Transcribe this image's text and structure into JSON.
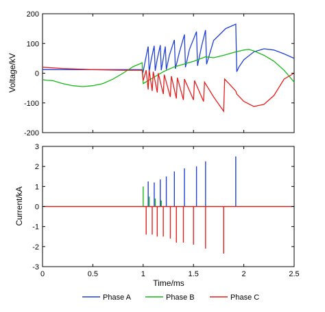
{
  "chart_data": [
    {
      "type": "line",
      "ylabel": "Voltage/kV",
      "xlim": [
        0,
        2.5
      ],
      "ylim": [
        -200,
        200
      ],
      "xticks": [
        "0",
        "0.5",
        "1",
        "1.5",
        "2",
        "2.5"
      ],
      "yticks": [
        "-200",
        "-100",
        "0",
        "100",
        "200"
      ],
      "grid": false,
      "series": [
        {
          "name": "Phase A",
          "color": "#1f3fd6",
          "points": [
            [
              0,
              12
            ],
            [
              0.5,
              12
            ],
            [
              0.9,
              12
            ],
            [
              0.99,
              12
            ],
            [
              1.0,
              5
            ],
            [
              1.02,
              40
            ],
            [
              1.05,
              90
            ],
            [
              1.06,
              5
            ],
            [
              1.08,
              45
            ],
            [
              1.11,
              92
            ],
            [
              1.12,
              8
            ],
            [
              1.14,
              48
            ],
            [
              1.17,
              94
            ],
            [
              1.18,
              10
            ],
            [
              1.2,
              50
            ],
            [
              1.22,
              90
            ],
            [
              1.23,
              12
            ],
            [
              1.26,
              60
            ],
            [
              1.31,
              112
            ],
            [
              1.32,
              15
            ],
            [
              1.36,
              70
            ],
            [
              1.41,
              130
            ],
            [
              1.42,
              20
            ],
            [
              1.46,
              80
            ],
            [
              1.53,
              140
            ],
            [
              1.54,
              25
            ],
            [
              1.58,
              90
            ],
            [
              1.62,
              145
            ],
            [
              1.63,
              30
            ],
            [
              1.7,
              110
            ],
            [
              1.82,
              150
            ],
            [
              1.92,
              165
            ],
            [
              1.93,
              5
            ],
            [
              1.95,
              20
            ],
            [
              2.0,
              45
            ],
            [
              2.1,
              72
            ],
            [
              2.2,
              82
            ],
            [
              2.3,
              78
            ],
            [
              2.4,
              65
            ],
            [
              2.5,
              50
            ]
          ]
        },
        {
          "name": "Phase B",
          "color": "#14b814",
          "points": [
            [
              0,
              -22
            ],
            [
              0.05,
              -24
            ],
            [
              0.1,
              -25
            ],
            [
              0.2,
              -35
            ],
            [
              0.3,
              -42
            ],
            [
              0.4,
              -45
            ],
            [
              0.5,
              -42
            ],
            [
              0.6,
              -35
            ],
            [
              0.7,
              -20
            ],
            [
              0.8,
              0
            ],
            [
              0.9,
              22
            ],
            [
              0.99,
              35
            ],
            [
              1.0,
              -35
            ],
            [
              1.05,
              -25
            ],
            [
              1.1,
              -15
            ],
            [
              1.2,
              5
            ],
            [
              1.3,
              20
            ],
            [
              1.4,
              30
            ],
            [
              1.5,
              40
            ],
            [
              1.62,
              55
            ],
            [
              1.7,
              52
            ],
            [
              1.8,
              60
            ],
            [
              1.9,
              70
            ],
            [
              2.0,
              78
            ],
            [
              2.05,
              80
            ],
            [
              2.1,
              75
            ],
            [
              2.2,
              60
            ],
            [
              2.3,
              40
            ],
            [
              2.4,
              10
            ],
            [
              2.5,
              -30
            ]
          ]
        },
        {
          "name": "Phase C",
          "color": "#e81c1c",
          "points": [
            [
              0,
              20
            ],
            [
              0.2,
              16
            ],
            [
              0.5,
              12
            ],
            [
              0.8,
              10
            ],
            [
              0.99,
              10
            ],
            [
              1.0,
              -25
            ],
            [
              1.03,
              10
            ],
            [
              1.05,
              -55
            ],
            [
              1.06,
              10
            ],
            [
              1.09,
              -60
            ],
            [
              1.1,
              5
            ],
            [
              1.14,
              -65
            ],
            [
              1.15,
              0
            ],
            [
              1.2,
              -70
            ],
            [
              1.21,
              -5
            ],
            [
              1.27,
              -80
            ],
            [
              1.28,
              -10
            ],
            [
              1.33,
              -85
            ],
            [
              1.34,
              -15
            ],
            [
              1.4,
              -90
            ],
            [
              1.41,
              -20
            ],
            [
              1.5,
              -90
            ],
            [
              1.51,
              -25
            ],
            [
              1.6,
              -95
            ],
            [
              1.61,
              -30
            ],
            [
              1.7,
              -80
            ],
            [
              1.8,
              -128
            ],
            [
              1.81,
              -20
            ],
            [
              1.92,
              -60
            ],
            [
              1.93,
              -70
            ],
            [
              2.0,
              -95
            ],
            [
              2.1,
              -112
            ],
            [
              2.2,
              -105
            ],
            [
              2.3,
              -75
            ],
            [
              2.4,
              -20
            ],
            [
              2.5,
              0
            ]
          ]
        }
      ]
    },
    {
      "type": "line",
      "xlabel": "Time/ms",
      "ylabel": "Current/kA",
      "xlim": [
        0,
        2.5
      ],
      "ylim": [
        -3,
        3
      ],
      "xticks": [
        "0",
        "0.5",
        "1",
        "1.5",
        "2",
        "2.5"
      ],
      "yticks": [
        "-3",
        "-2",
        "-1",
        "0",
        "1",
        "2",
        "3"
      ],
      "grid": false,
      "series": [
        {
          "name": "Phase A",
          "color": "#1f3fd6",
          "spikes": [
            [
              1.05,
              1.25
            ],
            [
              1.11,
              1.2
            ],
            [
              1.17,
              1.35
            ],
            [
              1.23,
              1.5
            ],
            [
              1.31,
              1.75
            ],
            [
              1.41,
              1.9
            ],
            [
              1.53,
              2.0
            ],
            [
              1.62,
              2.25
            ],
            [
              1.92,
              2.5
            ]
          ]
        },
        {
          "name": "Phase B",
          "color": "#14b814",
          "spikes": [
            [
              1.0,
              1.0
            ],
            [
              1.06,
              0.5
            ],
            [
              1.12,
              0.4
            ],
            [
              1.18,
              0.3
            ]
          ]
        },
        {
          "name": "Phase C",
          "color": "#e81c1c",
          "spikes": [
            [
              1.03,
              -1.4
            ],
            [
              1.09,
              -1.4
            ],
            [
              1.14,
              -1.5
            ],
            [
              1.2,
              -1.5
            ],
            [
              1.27,
              -1.6
            ],
            [
              1.33,
              -1.8
            ],
            [
              1.4,
              -1.8
            ],
            [
              1.5,
              -1.9
            ],
            [
              1.62,
              -2.1
            ],
            [
              1.8,
              -2.35
            ]
          ]
        }
      ]
    }
  ],
  "legend": {
    "items": [
      {
        "label": "Phase A",
        "color": "#1f3fd6"
      },
      {
        "label": "Phase B",
        "color": "#14b814"
      },
      {
        "label": "Phase C",
        "color": "#e81c1c"
      }
    ]
  }
}
